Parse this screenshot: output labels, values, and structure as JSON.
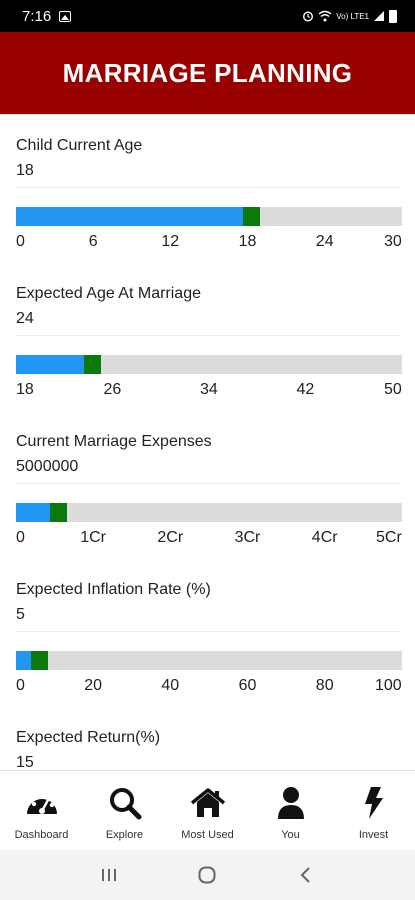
{
  "status_bar": {
    "time": "7:16",
    "signal_text": "Vo) LTE1"
  },
  "header": {
    "title": "MARRIAGE PLANNING"
  },
  "colors": {
    "header_bg": "#990000",
    "slider_fill": "#2196f3",
    "slider_thumb": "#0b7a0b",
    "slider_track": "#dcdcdc"
  },
  "fields": [
    {
      "label": "Child Current Age",
      "value": "18",
      "min": 0,
      "max": 30,
      "position": 18,
      "ticks": [
        "0",
        "6",
        "12",
        "18",
        "24",
        "30"
      ]
    },
    {
      "label": "Expected Age At Marriage",
      "value": "24",
      "min": 18,
      "max": 50,
      "position": 24,
      "ticks": [
        "18",
        "26",
        "34",
        "42",
        "50"
      ]
    },
    {
      "label": "Current Marriage Expenses",
      "value": "5000000",
      "min": 0,
      "max": 50000000,
      "position": 5000000,
      "ticks": [
        "0",
        "1Cr",
        "2Cr",
        "3Cr",
        "4Cr",
        "5Cr"
      ]
    },
    {
      "label": "Expected Inflation Rate (%)",
      "value": "5",
      "min": 0,
      "max": 100,
      "position": 5,
      "ticks": [
        "0",
        "20",
        "40",
        "60",
        "80",
        "100"
      ]
    },
    {
      "label": "Expected Return(%)",
      "value": "15"
    }
  ],
  "bottom_nav": [
    {
      "label": "Dashboard",
      "icon": "dashboard-icon"
    },
    {
      "label": "Explore",
      "icon": "search-icon"
    },
    {
      "label": "Most Used",
      "icon": "home-icon"
    },
    {
      "label": "You",
      "icon": "user-icon"
    },
    {
      "label": "Invest",
      "icon": "bolt-icon"
    }
  ],
  "system_nav": {
    "recents_icon": "recents-icon",
    "home_icon": "home-circle-icon",
    "back_icon": "back-icon"
  }
}
